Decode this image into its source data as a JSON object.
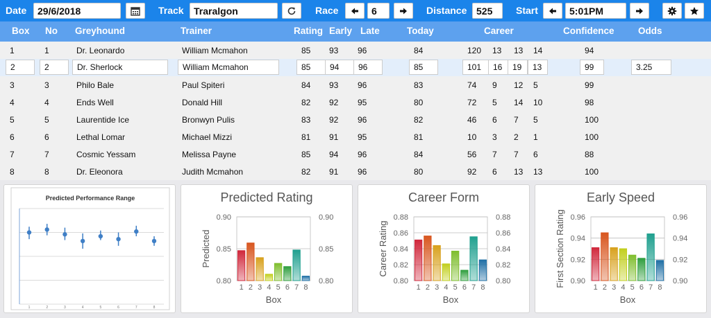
{
  "toolbar": {
    "date_label": "Date",
    "date_value": "29/6/2018",
    "track_label": "Track",
    "track_value": "Traralgon",
    "race_label": "Race",
    "race_value": "6",
    "distance_label": "Distance",
    "distance_value": "525",
    "start_label": "Start",
    "start_value": "5:01PM",
    "icons": [
      "calendar-icon",
      "refresh-icon",
      "arrow-left-icon",
      "arrow-right-icon",
      "gear-icon",
      "star-icon"
    ]
  },
  "table": {
    "headers": {
      "box": "Box",
      "no": "No",
      "greyhound": "Greyhound",
      "trainer": "Trainer",
      "rating": "Rating",
      "early": "Early",
      "late": "Late",
      "today": "Today",
      "career": "Career",
      "confidence": "Confidence",
      "odds": "Odds"
    },
    "rows": [
      {
        "box": "1",
        "no": "1",
        "greyhound": "Dr. Leonardo",
        "trainer": "William Mcmahon",
        "rating": "85",
        "early": "93",
        "late": "96",
        "today": "84",
        "c1": "120",
        "c2": "13",
        "c3": "13",
        "c4": "14",
        "confidence": "94",
        "odds": ""
      },
      {
        "box": "2",
        "no": "2",
        "greyhound": "Dr. Sherlock",
        "trainer": "William Mcmahon",
        "rating": "85",
        "early": "94",
        "late": "96",
        "today": "85",
        "c1": "101",
        "c2": "16",
        "c3": "19",
        "c4": "13",
        "confidence": "99",
        "odds": "3.25"
      },
      {
        "box": "3",
        "no": "3",
        "greyhound": "Philo Bale",
        "trainer": "Paul Spiteri",
        "rating": "84",
        "early": "93",
        "late": "96",
        "today": "83",
        "c1": "74",
        "c2": "9",
        "c3": "12",
        "c4": "5",
        "confidence": "99",
        "odds": ""
      },
      {
        "box": "4",
        "no": "4",
        "greyhound": "Ends Well",
        "trainer": "Donald Hill",
        "rating": "82",
        "early": "92",
        "late": "95",
        "today": "80",
        "c1": "72",
        "c2": "5",
        "c3": "14",
        "c4": "10",
        "confidence": "98",
        "odds": ""
      },
      {
        "box": "5",
        "no": "5",
        "greyhound": "Laurentide Ice",
        "trainer": "Bronwyn Pulis",
        "rating": "83",
        "early": "92",
        "late": "96",
        "today": "82",
        "c1": "46",
        "c2": "6",
        "c3": "7",
        "c4": "5",
        "confidence": "100",
        "odds": ""
      },
      {
        "box": "6",
        "no": "6",
        "greyhound": "Lethal Lomar",
        "trainer": "Michael Mizzi",
        "rating": "81",
        "early": "91",
        "late": "95",
        "today": "81",
        "c1": "10",
        "c2": "3",
        "c3": "2",
        "c4": "1",
        "confidence": "100",
        "odds": ""
      },
      {
        "box": "7",
        "no": "7",
        "greyhound": "Cosmic Yessam",
        "trainer": "Melissa Payne",
        "rating": "85",
        "early": "94",
        "late": "96",
        "today": "84",
        "c1": "56",
        "c2": "7",
        "c3": "7",
        "c4": "6",
        "confidence": "88",
        "odds": ""
      },
      {
        "box": "8",
        "no": "8",
        "greyhound": "Dr. Eleonora",
        "trainer": "Judith Mcmahon",
        "rating": "82",
        "early": "91",
        "late": "96",
        "today": "80",
        "c1": "92",
        "c2": "6",
        "c3": "13",
        "c4": "13",
        "confidence": "100",
        "odds": ""
      }
    ]
  },
  "bar_colors": [
    "#d0283c",
    "#d8561f",
    "#d8a11d",
    "#c2cf1e",
    "#7fbe2e",
    "#2f9e3e",
    "#20a08f",
    "#1f6fa5"
  ],
  "chart_data": [
    {
      "type": "scatter",
      "title": "Predicted Performance Range",
      "x": [
        1,
        2,
        3,
        4,
        5,
        6,
        7,
        8
      ],
      "y": [
        0.75,
        0.78,
        0.73,
        0.66,
        0.71,
        0.68,
        0.76,
        0.66
      ],
      "err_low": [
        0.68,
        0.72,
        0.67,
        0.58,
        0.67,
        0.61,
        0.71,
        0.61
      ],
      "err_high": [
        0.81,
        0.84,
        0.8,
        0.74,
        0.77,
        0.75,
        0.82,
        0.71
      ],
      "ylim": [
        0.0,
        1.0
      ],
      "grid": true
    },
    {
      "type": "bar",
      "title": "Predicted Rating",
      "categories": [
        "1",
        "2",
        "3",
        "4",
        "5",
        "6",
        "7",
        "8"
      ],
      "values": [
        0.847,
        0.859,
        0.836,
        0.81,
        0.827,
        0.822,
        0.848,
        0.807
      ],
      "xlabel": "Box",
      "ylabel": "Predicted",
      "ylim": [
        0.8,
        0.9
      ],
      "yticks": [
        "0.90",
        "0.85",
        "0.80"
      ],
      "grid": true
    },
    {
      "type": "bar",
      "title": "Career Form",
      "categories": [
        "1",
        "2",
        "3",
        "4",
        "5",
        "6",
        "7",
        "8"
      ],
      "values": [
        0.851,
        0.856,
        0.844,
        0.821,
        0.837,
        0.813,
        0.855,
        0.826
      ],
      "xlabel": "Box",
      "ylabel": "Career Rating",
      "ylim": [
        0.8,
        0.88
      ],
      "yticks": [
        "0.88",
        "0.86",
        "0.84",
        "0.82",
        "0.80"
      ],
      "grid": true
    },
    {
      "type": "bar",
      "title": "Early Speed",
      "categories": [
        "1",
        "2",
        "3",
        "4",
        "5",
        "6",
        "7",
        "8"
      ],
      "values": [
        0.931,
        0.945,
        0.931,
        0.93,
        0.924,
        0.921,
        0.944,
        0.919
      ],
      "xlabel": "Box",
      "ylabel": "First Section Rating",
      "ylim": [
        0.9,
        0.96
      ],
      "yticks": [
        "0.96",
        "0.94",
        "0.92",
        "0.90"
      ],
      "grid": true
    }
  ]
}
